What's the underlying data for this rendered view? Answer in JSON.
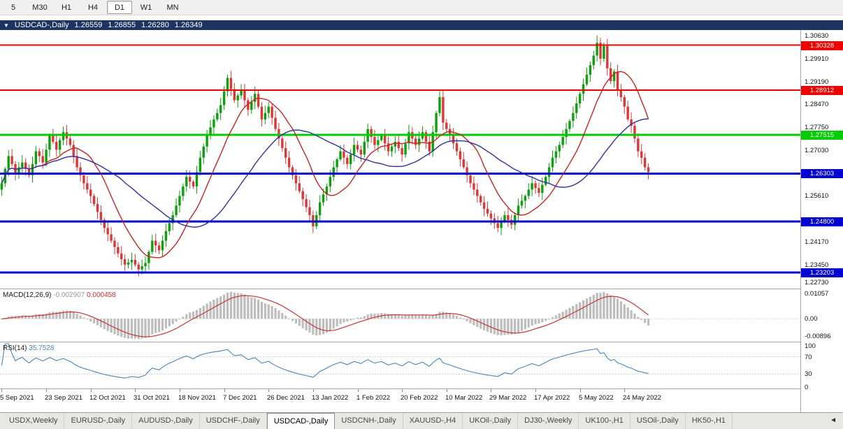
{
  "toolbar": {
    "timeframes": [
      {
        "label": "5",
        "active": false
      },
      {
        "label": "M30",
        "active": false
      },
      {
        "label": "H1",
        "active": false
      },
      {
        "label": "H4",
        "active": false
      },
      {
        "label": "D1",
        "active": true
      },
      {
        "label": "W1",
        "active": false
      },
      {
        "label": "MN",
        "active": false
      }
    ]
  },
  "chart_header": {
    "collapse_icon": "▼",
    "symbol_label": "USDCAD-,Daily",
    "open": "1.26559",
    "high": "1.26855",
    "low": "1.26280",
    "close": "1.26349"
  },
  "price_axis": {
    "ticks": [
      "1.30630",
      "1.29910",
      "1.29190",
      "1.28470",
      "1.27750",
      "1.27030",
      "1.26310",
      "1.25610",
      "1.24890",
      "1.24170",
      "1.23450",
      "1.22730"
    ]
  },
  "levels": [
    {
      "price": 1.30328,
      "label": "1.30328",
      "color": "#ee0000",
      "width": 2
    },
    {
      "price": 1.28912,
      "label": "1.28912",
      "color": "#ee0000",
      "width": 2
    },
    {
      "price": 1.27515,
      "label": "1.27515",
      "color": "#00cc00",
      "width": 3
    },
    {
      "price": 1.26303,
      "label": "1.26303",
      "color": "#0000d0",
      "width": 3
    },
    {
      "price": 1.248,
      "label": "1.24800",
      "color": "#0000d0",
      "width": 3
    },
    {
      "price": 1.23203,
      "label": "1.23203",
      "color": "#0000d0",
      "width": 3
    }
  ],
  "macd_panel": {
    "name": "MACD(12,26,9)",
    "main_value": "-0.002907",
    "signal_value": "0.000458",
    "axis_top": "0.01057",
    "axis_zero": "0.00",
    "axis_bottom": "-0.00896"
  },
  "rsi_panel": {
    "name": "RSI(14)",
    "value": "35.7528",
    "axis": [
      "100",
      "70",
      "30",
      "0"
    ],
    "levels": [
      70,
      30
    ]
  },
  "dates": [
    "5 Sep 2021",
    "23 Sep 2021",
    "12 Oct 2021",
    "31 Oct 2021",
    "18 Nov 2021",
    "7 Dec 2021",
    "26 Dec 2021",
    "13 Jan 2022",
    "1 Feb 2022",
    "20 Feb 2022",
    "10 Mar 2022",
    "29 Mar 2022",
    "17 Apr 2022",
    "5 May 2022",
    "24 May 2022"
  ],
  "tabs": {
    "items": [
      {
        "label": "USDX,Weekly",
        "active": false
      },
      {
        "label": "EURUSD-,Daily",
        "active": false
      },
      {
        "label": "AUDUSD-,Daily",
        "active": false
      },
      {
        "label": "USDCHF-,Daily",
        "active": false
      },
      {
        "label": "USDCAD-,Daily",
        "active": true
      },
      {
        "label": "USDCNH-,Daily",
        "active": false
      },
      {
        "label": "XAUUSD-,H4",
        "active": false
      },
      {
        "label": "UKOil-,Daily",
        "active": false
      },
      {
        "label": "DJ30-,Weekly",
        "active": false
      },
      {
        "label": "UK100-,H1",
        "active": false
      },
      {
        "label": "USOil-,Daily",
        "active": false
      },
      {
        "label": "HK50-,H1",
        "active": false
      }
    ],
    "scroll_left_icon": "◄"
  },
  "colors": {
    "candle_up": "#0ca00c",
    "candle_down": "#dd3636",
    "macd_histogram": "#bdbdbd",
    "macd_signal": "#cc3333",
    "rsi_line": "#4686be",
    "header_bg": "#1d3461"
  },
  "chart_data": [
    {
      "type": "candlestick",
      "title": "USDCAD-,Daily",
      "symbol": "USDCAD-",
      "timeframe": "Daily",
      "ylim": [
        1.227,
        1.308
      ],
      "x_labels_every": 13,
      "first_open": 1.258,
      "closes": [
        1.26,
        1.2645,
        1.2685,
        1.266,
        1.263,
        1.265,
        1.2665,
        1.2645,
        1.2625,
        1.266,
        1.27,
        1.2685,
        1.2665,
        1.2705,
        1.275,
        1.273,
        1.2705,
        1.2735,
        1.276,
        1.274,
        1.272,
        1.2685,
        1.265,
        1.2625,
        1.26,
        1.258,
        1.256,
        1.2535,
        1.251,
        1.2485,
        1.246,
        1.244,
        1.242,
        1.24,
        1.238,
        1.2362,
        1.2345,
        1.2352,
        1.236,
        1.2345,
        1.233,
        1.234,
        1.235,
        1.2385,
        1.242,
        1.2405,
        1.239,
        1.242,
        1.245,
        1.2475,
        1.25,
        1.253,
        1.256,
        1.259,
        1.262,
        1.2605,
        1.259,
        1.2635,
        1.268,
        1.2715,
        1.275,
        1.2775,
        1.28,
        1.282,
        1.2845,
        1.2888,
        1.293,
        1.2895,
        1.286,
        1.2875,
        1.289,
        1.286,
        1.283,
        1.2855,
        1.288,
        1.284,
        1.28,
        1.282,
        1.284,
        1.2805,
        1.277,
        1.274,
        1.271,
        1.268,
        1.265,
        1.2625,
        1.26,
        1.2575,
        1.255,
        1.2525,
        1.25,
        1.2465,
        1.25,
        1.254,
        1.2565,
        1.259,
        1.262,
        1.265,
        1.2675,
        1.27,
        1.268,
        1.266,
        1.269,
        1.272,
        1.2705,
        1.269,
        1.273,
        1.277,
        1.2745,
        1.272,
        1.2735,
        1.275,
        1.2725,
        1.27,
        1.2715,
        1.273,
        1.271,
        1.269,
        1.2725,
        1.276,
        1.274,
        1.272,
        1.274,
        1.276,
        1.273,
        1.27,
        1.276,
        1.282,
        1.287,
        1.279,
        1.277,
        1.275,
        1.2725,
        1.27,
        1.2675,
        1.265,
        1.2625,
        1.26,
        1.258,
        1.256,
        1.254,
        1.252,
        1.2505,
        1.249,
        1.2475,
        1.246,
        1.248,
        1.25,
        1.2485,
        1.247,
        1.25,
        1.253,
        1.2545,
        1.256,
        1.258,
        1.26,
        1.2585,
        1.257,
        1.2595,
        1.262,
        1.265,
        1.268,
        1.27,
        1.272,
        1.2745,
        1.277,
        1.2795,
        1.282,
        1.285,
        1.288,
        1.291,
        1.294,
        1.297,
        1.3,
        1.304,
        1.299,
        1.303,
        1.296,
        1.292,
        1.295,
        1.289,
        1.287,
        1.284,
        1.28,
        1.278,
        1.274,
        1.27,
        1.268,
        1.265,
        1.2635
      ],
      "overlays": [
        {
          "type": "sma",
          "period": 13,
          "color": "#cc2222"
        },
        {
          "type": "sma",
          "period": 34,
          "color": "#3030a0"
        }
      ]
    },
    {
      "type": "macd_histogram",
      "name": "MACD(12,26,9)",
      "params": [
        12,
        26,
        9
      ],
      "derived": "computed from candlestick closes",
      "current_main": -0.002907,
      "current_signal": 0.000458
    },
    {
      "type": "line",
      "name": "RSI(14)",
      "params": [
        14
      ],
      "derived": "computed from candlestick closes",
      "current": 35.7528,
      "range": [
        0,
        100
      ],
      "levels": [
        70,
        30
      ]
    }
  ]
}
